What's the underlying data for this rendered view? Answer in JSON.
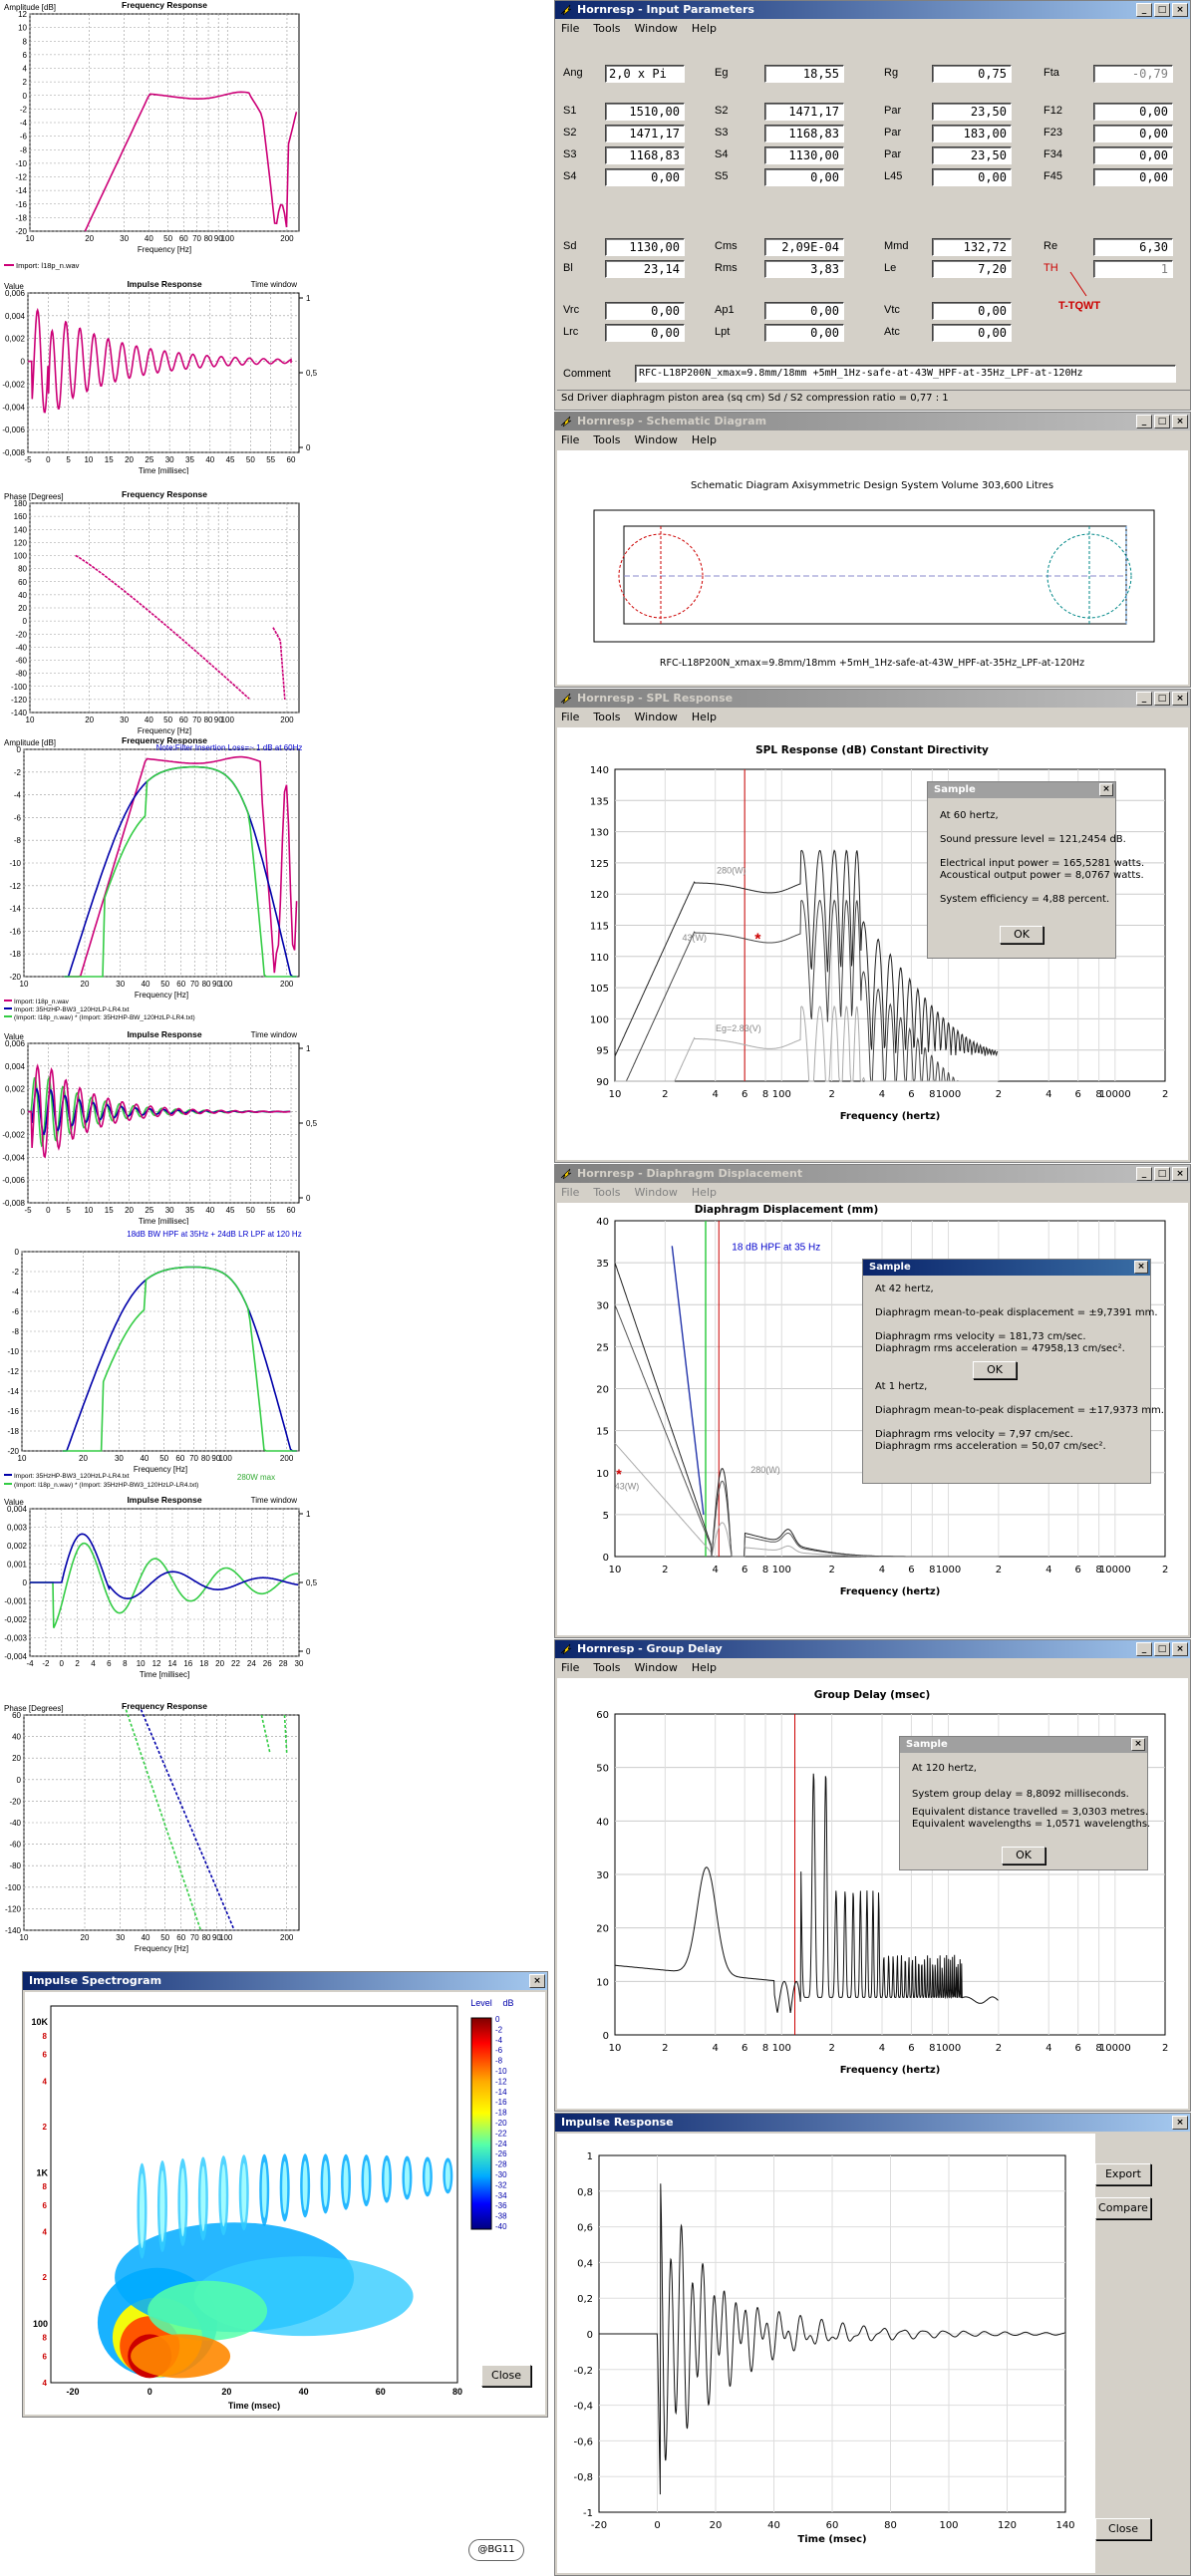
{
  "left": {
    "p1": {
      "ylabel": "Amplitude [dB]",
      "title": "Frequency Response",
      "xlabel": "Frequency [Hz]",
      "legend": [
        "Import: l18p_n.wav"
      ],
      "yticks": [
        "12",
        "10",
        "8",
        "6",
        "4",
        "2",
        "0",
        "-2",
        "-4",
        "-6",
        "-8",
        "-10",
        "-12",
        "-14",
        "-16",
        "-18",
        "-20"
      ],
      "xticks": [
        "10",
        "20",
        "30",
        "40",
        "50",
        "60",
        "70",
        "80",
        "90",
        "100",
        "200"
      ]
    },
    "p2": {
      "ylabel": "Value",
      "title": "Impulse Response",
      "tw": "Time window",
      "xlabel": "Time [millisec]",
      "yticks": [
        "0,006",
        "0,004",
        "0,002",
        "0",
        "-0,002",
        "-0,004",
        "-0,006",
        "-0,008"
      ],
      "xticks": [
        "-5",
        "0",
        "5",
        "10",
        "15",
        "20",
        "25",
        "30",
        "35",
        "40",
        "45",
        "50",
        "55",
        "60"
      ],
      "rticks": [
        "1",
        "0,5",
        "0"
      ]
    },
    "p3": {
      "ylabel": "Phase [Degrees]",
      "title": "Frequency Response",
      "xlabel": "Frequency [Hz]",
      "yticks": [
        "180",
        "160",
        "140",
        "120",
        "100",
        "80",
        "60",
        "40",
        "20",
        "0",
        "-20",
        "-40",
        "-60",
        "-80",
        "-100",
        "-120",
        "-140"
      ],
      "xticks": [
        "10",
        "20",
        "30",
        "40",
        "50",
        "60",
        "70",
        "80",
        "90",
        "100",
        "200"
      ]
    },
    "p4": {
      "ylabel": "Amplitude [dB]",
      "title": "Frequency Response",
      "note": "Note:Filter Insertion Loss=~ 1 dB at 60Hz",
      "xlabel": "Frequency [Hz]",
      "legend": [
        "Import: l18p_n.wav",
        "Import: 35HzHP-BW3_120HzLP-LR4.txt",
        "(Import: l18p_n.wav) * (Import: 35HzHP-BW_120HzLP-LR4.txt)"
      ],
      "yticks": [
        "0",
        "-2",
        "-4",
        "-6",
        "-8",
        "-10",
        "-12",
        "-14",
        "-16",
        "-18",
        "-20"
      ],
      "xticks": [
        "10",
        "20",
        "30",
        "40",
        "50",
        "60",
        "70",
        "80",
        "90",
        "100",
        "200"
      ]
    },
    "p5": {
      "ylabel": "Value",
      "title": "Impulse Response",
      "tw": "Time window",
      "xlabel": "Time [millisec]",
      "yticks": [
        "0,006",
        "0,004",
        "0,002",
        "0",
        "-0,002",
        "-0,004",
        "-0,006",
        "-0,008"
      ],
      "xticks": [
        "-5",
        "0",
        "5",
        "10",
        "15",
        "20",
        "25",
        "30",
        "35",
        "40",
        "45",
        "50",
        "55",
        "60"
      ],
      "rticks": [
        "1",
        "0,5",
        "0"
      ]
    },
    "p6": {
      "note": "18dB BW HPF at 35Hz + 24dB LR LPF at 120 Hz",
      "xlabel": "Frequency [Hz]",
      "legend": [
        "Import: 35HzHP-BW3_120HzLP-LR4.txt",
        "(Import: l18p_n.wav) * (Import: 35HzHP-BW3_120HzLP-LR4.txt)"
      ],
      "max_label": "280W max",
      "yticks": [
        "0",
        "-2",
        "-4",
        "-6",
        "-8",
        "-10",
        "-12",
        "-14",
        "-16",
        "-18",
        "-20"
      ],
      "xticks": [
        "10",
        "20",
        "30",
        "40",
        "50",
        "60",
        "70",
        "80",
        "90",
        "100",
        "200"
      ]
    },
    "p7": {
      "ylabel": "Value",
      "title": "Impulse Response",
      "tw": "Time window",
      "xlabel": "Time [millisec]",
      "yticks": [
        "0,004",
        "0,003",
        "0,002",
        "0,001",
        "0",
        "-0,001",
        "-0,002",
        "-0,003",
        "-0,004"
      ],
      "xticks": [
        "-4",
        "-2",
        "0",
        "2",
        "4",
        "6",
        "8",
        "10",
        "12",
        "14",
        "16",
        "18",
        "20",
        "22",
        "24",
        "26",
        "28",
        "30"
      ],
      "rticks": [
        "1",
        "0,5",
        "0"
      ]
    },
    "p8": {
      "ylabel": "Phase [Degrees]",
      "title": "Frequency Response",
      "xlabel": "Frequency [Hz]",
      "yticks": [
        "60",
        "40",
        "20",
        "0",
        "-20",
        "-40",
        "-60",
        "-80",
        "-100",
        "-120",
        "-140"
      ],
      "xticks": [
        "10",
        "20",
        "30",
        "40",
        "50",
        "60",
        "70",
        "80",
        "90",
        "100",
        "200"
      ]
    }
  },
  "spectrogram": {
    "title": "Impulse Spectrogram",
    "level_label": "Level",
    "db_label": "dB",
    "scale": [
      "0",
      "-2",
      "-4",
      "-6",
      "-8",
      "-10",
      "-12",
      "-14",
      "-16",
      "-18",
      "-20",
      "-22",
      "-24",
      "-26",
      "-28",
      "-30",
      "-32",
      "-34",
      "-36",
      "-38",
      "-40"
    ],
    "yticks_big": [
      "10K",
      "1K",
      "100"
    ],
    "yticks_small": [
      "8",
      "6",
      "4",
      "2"
    ],
    "xticks": [
      "-20",
      "0",
      "20",
      "40",
      "60",
      "80"
    ],
    "xlabel": "Time (msec)",
    "close": "Close"
  },
  "input_params": {
    "title": "Hornresp - Input Parameters",
    "menu": [
      "File",
      "Tools",
      "Window",
      "Help"
    ],
    "rows": [
      [
        [
          "Ang",
          "2,0 x Pi"
        ],
        [
          "Eg",
          "18,55"
        ],
        [
          "Rg",
          "0,75"
        ],
        [
          "Fta",
          "-0,79"
        ]
      ],
      [
        [
          "S1",
          "1510,00"
        ],
        [
          "S2",
          "1471,17"
        ],
        [
          "Par",
          "23,50"
        ],
        [
          "F12",
          "0,00"
        ]
      ],
      [
        [
          "S2",
          "1471,17"
        ],
        [
          "S3",
          "1168,83"
        ],
        [
          "Par",
          "183,00"
        ],
        [
          "F23",
          "0,00"
        ]
      ],
      [
        [
          "S3",
          "1168,83"
        ],
        [
          "S4",
          "1130,00"
        ],
        [
          "Par",
          "23,50"
        ],
        [
          "F34",
          "0,00"
        ]
      ],
      [
        [
          "S4",
          "0,00"
        ],
        [
          "S5",
          "0,00"
        ],
        [
          "L45",
          "0,00"
        ],
        [
          "F45",
          "0,00"
        ]
      ],
      [
        [
          "Sd",
          "1130,00"
        ],
        [
          "Cms",
          "2,09E-04"
        ],
        [
          "Mmd",
          "132,72"
        ],
        [
          "Re",
          "6,30"
        ]
      ],
      [
        [
          "Bl",
          "23,14"
        ],
        [
          "Rms",
          "3,83"
        ],
        [
          "Le",
          "7,20"
        ],
        [
          "TH",
          "1"
        ]
      ],
      [
        [
          "Vrc",
          "0,00"
        ],
        [
          "Ap1",
          "0,00"
        ],
        [
          "Vtc",
          "0,00"
        ]
      ],
      [
        [
          "Lrc",
          "0,00"
        ],
        [
          "Lpt",
          "0,00"
        ],
        [
          "Atc",
          "0,00"
        ]
      ]
    ],
    "comment_label": "Comment",
    "comment": "RFC-L18P200N_xmax=9.8mm/18mm +5mH_1Hz-safe-at-43W_HPF-at-35Hz_LPF-at-120Hz",
    "status": "Sd   Driver diaphragm piston area  (sq cm)   Sd / S2 compression ratio = 0,77 : 1",
    "tqwt": "T-TQWT"
  },
  "schematic": {
    "title": "Hornresp - Schematic Diagram",
    "menu": [
      "File",
      "Tools",
      "Window",
      "Help"
    ],
    "heading": "Schematic Diagram   Axisymmetric Design   System Volume 303,600 Litres",
    "caption": "RFC-L18P200N_xmax=9.8mm/18mm +5mH_1Hz-safe-at-43W_HPF-at-35Hz_LPF-at-120Hz"
  },
  "spl": {
    "title": "Hornresp - SPL Response",
    "menu": [
      "File",
      "Tools",
      "Window",
      "Help"
    ],
    "heading": "SPL Response (dB)   Constant Directivity",
    "yticks": [
      "140",
      "135",
      "130",
      "125",
      "120",
      "115",
      "110",
      "105",
      "100",
      "95",
      "90"
    ],
    "xticks": [
      "10",
      "2",
      "4",
      "6",
      "8",
      "100",
      "2",
      "4",
      "6",
      "8",
      "1000",
      "2",
      "4",
      "6",
      "8",
      "10000",
      "2"
    ],
    "xlabel": "Frequency (hertz)",
    "labels": [
      "280(W)",
      "43(W)",
      "Eg=2.83(V)"
    ],
    "sample": {
      "title": "Sample",
      "lines": [
        "At 60 hertz,",
        "Sound pressure level = 121,2454 dB.",
        "Electrical input power = 165,5281 watts.",
        "Acoustical output power = 8,0767 watts.",
        "System efficiency = 4,88 percent."
      ],
      "ok": "OK"
    }
  },
  "disp": {
    "title": "Hornresp - Diaphragm Displacement",
    "menu": [
      "File",
      "Tools",
      "Window",
      "Help"
    ],
    "heading": "Diaphragm Displacement (mm)",
    "yticks": [
      "40",
      "35",
      "30",
      "25",
      "20",
      "15",
      "10",
      "5",
      "0"
    ],
    "xticks": [
      "10",
      "2",
      "4",
      "6",
      "8",
      "100",
      "2",
      "4",
      "6",
      "8",
      "1000",
      "2",
      "4",
      "6",
      "8",
      "10000",
      "2"
    ],
    "xlabel": "Frequency (hertz)",
    "hpf": "18 dB HPF at 35 Hz",
    "labels": [
      "43(W)",
      "280(W)"
    ],
    "sample": {
      "title": "Sample",
      "lines": [
        "At 42 hertz,",
        "Diaphragm mean-to-peak displacement = ±9,7391 mm.",
        "Diaphragm rms velocity = 181,73 cm/sec.",
        "Diaphragm rms acceleration = 47958,13 cm/sec².",
        "At 1 hertz,",
        "Diaphragm mean-to-peak displacement = ±17,9373 mm.",
        "Diaphragm rms velocity = 7,97 cm/sec.",
        "Diaphragm rms acceleration = 50,07 cm/sec²."
      ],
      "ok": "OK"
    }
  },
  "gd": {
    "title": "Hornresp - Group Delay",
    "menu": [
      "File",
      "Tools",
      "Window",
      "Help"
    ],
    "heading": "Group Delay (msec)",
    "yticks": [
      "60",
      "50",
      "40",
      "30",
      "20",
      "10",
      "0"
    ],
    "xticks": [
      "10",
      "2",
      "4",
      "6",
      "8",
      "100",
      "2",
      "4",
      "6",
      "8",
      "1000",
      "2",
      "4",
      "6",
      "8",
      "10000",
      "2"
    ],
    "xlabel": "Frequency (hertz)",
    "sample": {
      "title": "Sample",
      "lines": [
        "At 120 hertz,",
        "System group delay = 8,8092 milliseconds.",
        "Equivalent distance travelled = 3,0303 metres.",
        "Equivalent wavelengths = 1,0571 wavelengths."
      ],
      "ok": "OK"
    }
  },
  "ir": {
    "title": "Impulse Response",
    "export": "Export",
    "compare": "Compare",
    "close": "Close",
    "yticks": [
      "1",
      "0,8",
      "0,6",
      "0,4",
      "0,2",
      "0",
      "-0,2",
      "-0,4",
      "-0,6",
      "-0,8",
      "-1"
    ],
    "xticks": [
      "-20",
      "0",
      "20",
      "40",
      "60",
      "80",
      "100",
      "120",
      "140"
    ],
    "xlabel": "Time (msec)"
  },
  "credit": "@BG11",
  "colors": {
    "magenta": "#cc0077",
    "blue": "#0000aa",
    "green": "#33cc44",
    "red_line": "#cc0000",
    "title_active": "#0a246a",
    "title_inactive": "#808080",
    "window_face": "#d4d0c8"
  }
}
